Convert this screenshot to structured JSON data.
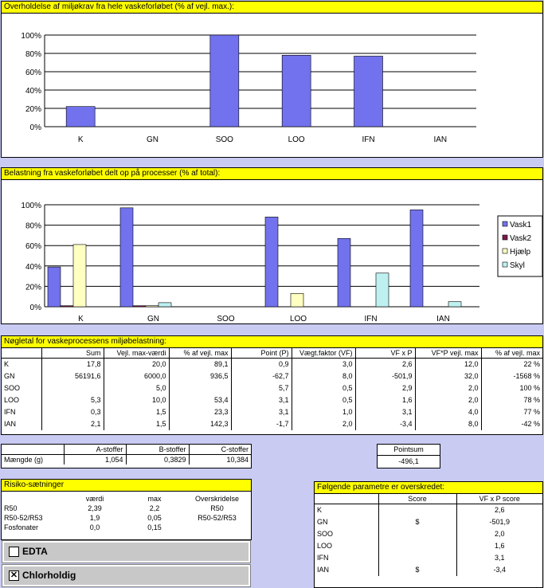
{
  "chart1": {
    "title": "Overholdelse af miljøkrav fra hele vaskeforløbet (% af vejl. max.):",
    "chart_data": {
      "type": "bar",
      "categories": [
        "K",
        "GN",
        "SOO",
        "LOO",
        "IFN",
        "IAN"
      ],
      "series": [
        {
          "values": [
            22,
            0,
            100,
            78,
            77,
            0
          ],
          "color": "#7272ee"
        }
      ],
      "ylim": [
        0,
        100
      ],
      "yticks": [
        "0%",
        "20%",
        "40%",
        "60%",
        "80%",
        "100%"
      ],
      "grid": true
    }
  },
  "chart2": {
    "title": "Belastning fra vaskeforløbet delt op på processer (% af total):",
    "chart_data": {
      "type": "bar",
      "categories": [
        "K",
        "GN",
        "SOO",
        "LOO",
        "IFN",
        "IAN"
      ],
      "series": [
        {
          "name": "Vask1",
          "values": [
            39,
            97,
            0,
            88,
            67,
            95
          ],
          "color": "#7272ee"
        },
        {
          "name": "Vask2",
          "values": [
            1,
            1,
            0,
            0,
            0,
            0
          ],
          "color": "#7a1a4a"
        },
        {
          "name": "Hjælp",
          "values": [
            61,
            1,
            0,
            13,
            0,
            0
          ],
          "color": "#ffffc2"
        },
        {
          "name": "Skyl",
          "values": [
            0,
            4,
            0,
            0,
            33,
            5
          ],
          "color": "#bff0f0"
        }
      ],
      "ylim": [
        0,
        100
      ],
      "yticks": [
        "0%",
        "20%",
        "40%",
        "60%",
        "80%",
        "100%"
      ],
      "legend": "right",
      "grid": true
    }
  },
  "noegletal": {
    "title": "Nøgletal for vaskeprocessens miljøbelastning:",
    "headers": [
      "",
      "Sum",
      "Vejl. max-værdi",
      "% af vejl. max",
      "Point (P)",
      "Vægt.faktor (VF)",
      "VF x P",
      "VF*P vejl. max",
      "% af vejl. max"
    ],
    "rows": [
      [
        "K",
        "17,8",
        "20,0",
        "89,1",
        "0,9",
        "3,0",
        "2,6",
        "12,0",
        "22 %"
      ],
      [
        "GN",
        "56191,6",
        "6000,0",
        "936,5",
        "-62,7",
        "8,0",
        "-501,9",
        "32,0",
        "-1568 %"
      ],
      [
        "SOO",
        "",
        "5,0",
        "",
        "5,7",
        "0,5",
        "2,9",
        "2,0",
        "100 %"
      ],
      [
        "LOO",
        "5,3",
        "10,0",
        "53,4",
        "3,1",
        "0,5",
        "1,6",
        "2,0",
        "78 %"
      ],
      [
        "IFN",
        "0,3",
        "1,5",
        "23,3",
        "3,1",
        "1,0",
        "3,1",
        "4,0",
        "77 %"
      ],
      [
        "IAN",
        "2,1",
        "1,5",
        "142,3",
        "-1,7",
        "2,0",
        "-3,4",
        "8,0",
        "-42 %"
      ]
    ]
  },
  "stoffer": {
    "headers": [
      "",
      "A-stoffer",
      "B-stoffer",
      "C-stoffer"
    ],
    "row": [
      "Mængde (g)",
      "1,054",
      "0,3829",
      "10,384"
    ]
  },
  "pointsum": {
    "label": "Pointsum",
    "value": "-496,1"
  },
  "risiko": {
    "title": "Risiko-sætninger",
    "headers": [
      "",
      "værdi",
      "max",
      "Overskridelse"
    ],
    "rows": [
      [
        "R50",
        "2,39",
        "2,2",
        "R50"
      ],
      [
        "R50-52/R53",
        "1,9",
        "0,05",
        "R50-52/R53"
      ],
      [
        "Fosfonater",
        "0,0",
        "0,15",
        ""
      ]
    ]
  },
  "checkboxes": [
    {
      "label": "EDTA",
      "checked": false,
      "mark": ""
    },
    {
      "label": "Chlorholdig",
      "checked": true,
      "mark": "✕"
    }
  ],
  "parametre": {
    "title": "Følgende parametre er overskredet:",
    "headers": [
      "",
      "Score",
      "VF x P score"
    ],
    "rows": [
      [
        "K",
        "",
        "2,6"
      ],
      [
        "GN",
        "$",
        "-501,9"
      ],
      [
        "SOO",
        "",
        "2,0"
      ],
      [
        "LOO",
        "",
        "1,6"
      ],
      [
        "IFN",
        "",
        "3,1"
      ],
      [
        "IAN",
        "$",
        "-3,4"
      ]
    ]
  }
}
